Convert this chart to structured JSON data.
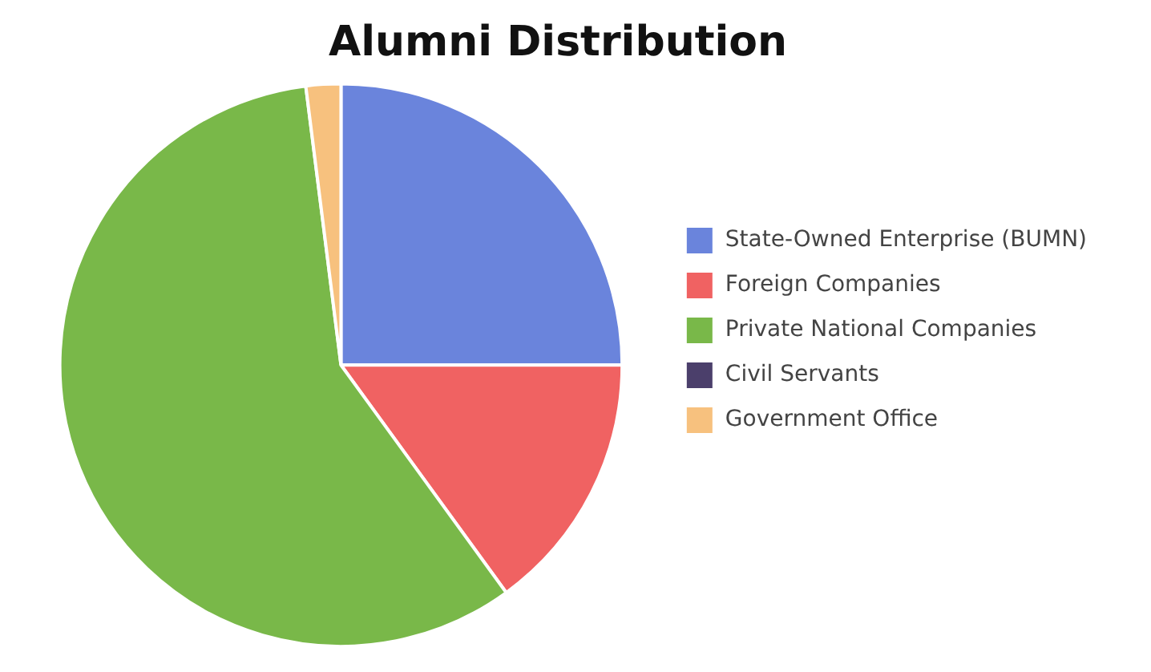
{
  "chart_data": {
    "type": "pie",
    "title": "Alumni Distribution",
    "categories": [
      "State-Owned Enterprise (BUMN)",
      "Foreign Companies",
      "Private National Companies",
      "Civil Servants",
      "Government Office"
    ],
    "values": [
      25,
      15,
      58,
      null,
      2
    ],
    "colors": [
      "#6a84dc",
      "#f06262",
      "#79b849",
      "#4b3f6b",
      "#f7c17e"
    ],
    "legend": "right"
  }
}
